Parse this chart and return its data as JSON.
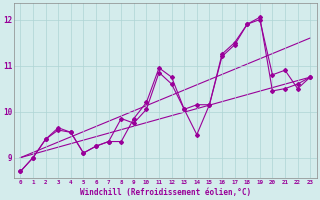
{
  "background_color": "#d4ecec",
  "grid_color": "#aed4d4",
  "line_color": "#990099",
  "xlabel": "Windchill (Refroidissement éolien,°C)",
  "yticks": [
    9,
    10,
    11,
    12
  ],
  "ylim": [
    8.55,
    12.35
  ],
  "xlim": [
    -0.5,
    23.5
  ],
  "xtick_labels": [
    "0",
    "1",
    "2",
    "3",
    "4",
    "5",
    "6",
    "7",
    "8",
    "9",
    "10",
    "11",
    "12",
    "13",
    "14",
    "15",
    "16",
    "17",
    "18",
    "19",
    "20",
    "21",
    "22",
    "23"
  ],
  "series1_x": [
    0,
    1,
    2,
    3,
    4,
    5,
    6,
    7,
    8,
    9,
    10,
    11,
    12,
    13,
    14,
    15,
    16,
    17,
    18,
    19,
    20,
    21,
    22,
    23
  ],
  "series1_y": [
    8.7,
    9.0,
    9.4,
    9.6,
    9.55,
    9.1,
    9.25,
    9.35,
    9.85,
    9.75,
    10.05,
    10.85,
    10.6,
    10.05,
    9.5,
    10.15,
    11.25,
    11.5,
    11.9,
    12.05,
    10.45,
    10.5,
    10.6,
    10.75
  ],
  "series2_x": [
    0,
    1,
    2,
    3,
    4,
    5,
    6,
    7,
    8,
    9,
    10,
    11,
    12,
    13,
    14,
    15,
    16,
    17,
    18,
    19,
    20,
    21,
    22,
    23
  ],
  "series2_y": [
    8.7,
    9.0,
    9.4,
    9.65,
    9.55,
    9.1,
    9.25,
    9.35,
    9.35,
    9.85,
    10.2,
    10.95,
    10.75,
    10.05,
    10.15,
    10.15,
    11.2,
    11.45,
    11.9,
    12.0,
    10.8,
    10.9,
    10.5,
    10.75
  ],
  "trend1_x": [
    0,
    23
  ],
  "trend1_y": [
    9.0,
    10.75
  ],
  "trend2_x": [
    0,
    23
  ],
  "trend2_y": [
    9.0,
    11.6
  ]
}
